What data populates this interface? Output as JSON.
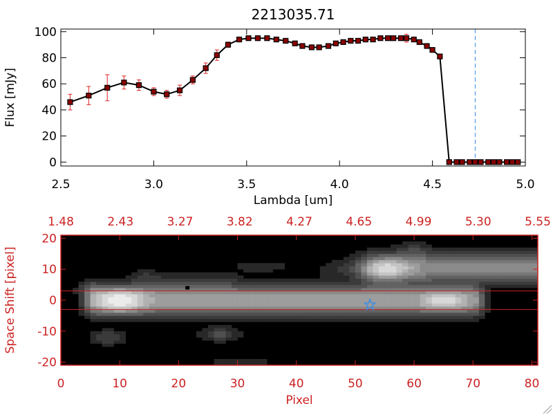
{
  "chart_data": [
    {
      "type": "line",
      "title": "2213035.71",
      "xlabel": "Lambda [um]",
      "ylabel": "Flux [mJy]",
      "xlim": [
        2.5,
        5.0
      ],
      "ylim": [
        -3,
        102
      ],
      "xticks": [
        "2.5",
        "3.0",
        "3.5",
        "4.0",
        "4.5",
        "5.0"
      ],
      "yticks": [
        "0",
        "20",
        "40",
        "60",
        "80",
        "100"
      ],
      "colors": {
        "line": "#000000",
        "marker": "#8b0000",
        "error": "#e02020",
        "cutoff": "#3a8ee8"
      },
      "cutoff_x": 4.73,
      "series": [
        {
          "x": [
            2.55,
            2.65,
            2.75,
            2.84,
            2.92,
            3.0,
            3.07,
            3.14,
            3.21,
            3.28,
            3.34,
            3.4,
            3.46,
            3.51,
            3.56,
            3.61,
            3.66,
            3.71,
            3.76,
            3.8,
            3.85,
            3.89,
            3.94,
            3.98,
            4.02,
            4.06,
            4.1,
            4.14,
            4.18,
            4.22,
            4.26,
            4.29,
            4.33,
            4.36,
            4.4,
            4.43,
            4.47,
            4.5,
            4.54,
            4.59,
            4.63,
            4.66,
            4.7,
            4.73,
            4.76,
            4.8,
            4.83,
            4.86,
            4.9,
            4.93,
            4.96
          ],
          "y": [
            46,
            51,
            57,
            61,
            59,
            54,
            52,
            55,
            63,
            72,
            82,
            90,
            94,
            95,
            95,
            95,
            94,
            93,
            91,
            89,
            88,
            88,
            89,
            91,
            92,
            93,
            93,
            94,
            94,
            95,
            95,
            95,
            95,
            95,
            94,
            92,
            89,
            86,
            81,
            0,
            0,
            0,
            0,
            0,
            0,
            0,
            0,
            0,
            0,
            0,
            0
          ],
          "yerr": [
            6,
            7,
            10,
            5,
            4,
            3,
            3,
            4,
            3,
            4,
            4,
            2,
            1,
            1,
            1,
            1,
            1,
            1,
            1,
            1,
            1,
            1,
            1,
            1,
            1,
            1,
            1,
            1,
            1,
            1,
            1,
            1,
            1,
            3,
            1,
            1,
            1,
            1,
            1,
            0,
            0,
            0,
            0,
            0,
            0,
            0,
            0,
            0,
            0,
            0,
            0
          ]
        }
      ]
    },
    {
      "type": "heatmap",
      "xlabel": "Pixel",
      "ylabel": "Space Shift [pixel]",
      "xlim": [
        0,
        81
      ],
      "ylim": [
        -21,
        21
      ],
      "xticks": [
        "0",
        "10",
        "20",
        "30",
        "40",
        "50",
        "60",
        "70",
        "80"
      ],
      "yticks": [
        "-20",
        "-10",
        "0",
        "10",
        "20"
      ],
      "top_ticks": [
        "1.48",
        "2.43",
        "3.27",
        "3.82",
        "4.27",
        "4.65",
        "4.99",
        "5.30",
        "5.55"
      ],
      "colors": {
        "axis": "#cc2222",
        "background": "#000000",
        "marker": "#3a8ee8"
      },
      "extraction_lines": [
        3,
        -3
      ],
      "target": {
        "x": 52.5,
        "y": -1.5
      },
      "source_marker": {
        "x": 21.5,
        "y": 4
      },
      "blobs": [
        {
          "x0": 6,
          "x1": 70,
          "y0": -1,
          "y1": 1,
          "sx": 1.4,
          "sy": 2.6,
          "amp": 0.56
        },
        {
          "x0": 10,
          "x1": 10,
          "y0": 0,
          "y1": 0,
          "sx": 3,
          "sy": 3,
          "amp": 0.4
        },
        {
          "x0": 65,
          "x1": 65,
          "y0": 0,
          "y1": 0,
          "sx": 2.5,
          "sy": 2,
          "amp": 0.3
        },
        {
          "x0": 54,
          "x1": 81,
          "y0": 10,
          "y1": 11,
          "sx": 2.5,
          "sy": 2.8,
          "amp": 0.5
        },
        {
          "x0": 56,
          "x1": 56,
          "y0": 10,
          "y1": 10,
          "sx": 2.5,
          "sy": 2.5,
          "amp": 0.35
        },
        {
          "x0": 60,
          "x1": 60,
          "y0": 16,
          "y1": 16,
          "sx": 1.8,
          "sy": 1.8,
          "amp": 0.15
        },
        {
          "x0": 47,
          "x1": 52,
          "y0": 10,
          "y1": 10,
          "sx": 2,
          "sy": 2,
          "amp": 0.12
        },
        {
          "x0": 8,
          "x1": 8,
          "y0": -12,
          "y1": -12,
          "sx": 1.8,
          "sy": 1.5,
          "amp": 0.22
        },
        {
          "x0": 27,
          "x1": 27,
          "y0": -11,
          "y1": -11,
          "sx": 2,
          "sy": 1.5,
          "amp": 0.25
        },
        {
          "x0": 16,
          "x1": 28,
          "y0": 6,
          "y1": 6,
          "sx": 2,
          "sy": 2,
          "amp": 0.1
        },
        {
          "x0": 32,
          "x1": 36,
          "y0": 11,
          "y1": 11,
          "sx": 2,
          "sy": 1.5,
          "amp": 0.08
        },
        {
          "x0": 28,
          "x1": 33,
          "y0": -20,
          "y1": -20,
          "sx": 2,
          "sy": 1,
          "amp": 0.12
        },
        {
          "x0": 5,
          "x1": 5,
          "y0": 4,
          "y1": 4,
          "sx": 1.5,
          "sy": 1.5,
          "amp": 0.12
        },
        {
          "x0": 14,
          "x1": 14,
          "y0": 8,
          "y1": 8,
          "sx": 1.5,
          "sy": 1.5,
          "amp": 0.1
        }
      ]
    }
  ]
}
